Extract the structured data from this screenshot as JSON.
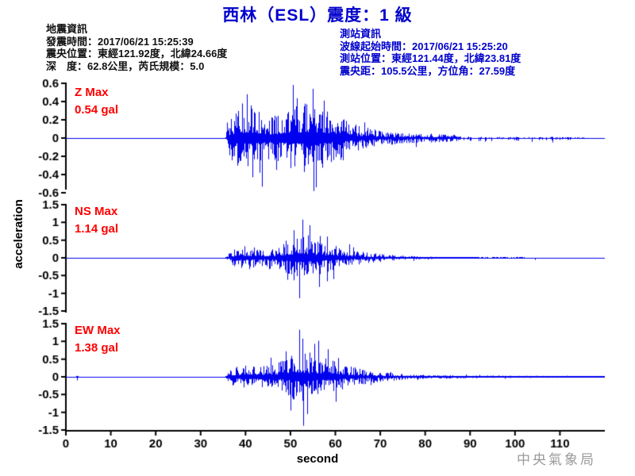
{
  "title": "西林（ESL）震度：1 級",
  "earthquake_info": {
    "heading": "地震資訊",
    "lines": [
      "發震時間：2017/06/21 15:25:39",
      "震央位置：東經121.92度，北緯24.66度",
      "深　度：62.8公里，芮氏規模：5.0"
    ]
  },
  "station_info": {
    "heading": "測站資訊",
    "lines": [
      "波線起始時間：2017/06/21 15:25:20",
      "測站位置：東經121.44度，北緯23.81度",
      "震央距：105.5公里，方位角：27.59度"
    ]
  },
  "watermark": "中央氣象局",
  "colors": {
    "title_blue": "#0000cc",
    "info_blue": "#0000cc",
    "trace_blue": "#0000ee",
    "label_red": "#ff0000",
    "axis_black": "#000000",
    "watermark_gray": "#9a9a9a"
  },
  "chart_data": {
    "type": "line",
    "xlabel": "second",
    "ylabel": "acceleration",
    "x_range": [
      0,
      120
    ],
    "x_ticks": [
      "0",
      "10",
      "20",
      "30",
      "40",
      "50",
      "60",
      "70",
      "80",
      "90",
      "100",
      "110"
    ],
    "x_tick_values": [
      0,
      10,
      20,
      30,
      40,
      50,
      60,
      70,
      80,
      90,
      100,
      110
    ],
    "event_onset_sec": 36,
    "channels": [
      {
        "name": "Z",
        "label": "Z Max",
        "max_label": "0.54 gal",
        "max_gal": 0.54,
        "ylim": [
          -0.6,
          0.6
        ],
        "y_ticks": [
          "0.6",
          "0.4",
          "0.2",
          "0",
          "-0.2",
          "-0.4",
          "-0.6"
        ],
        "y_tick_values": [
          0.6,
          0.4,
          0.2,
          0,
          -0.2,
          -0.4,
          -0.6
        ],
        "envelope": [
          [
            0,
            0.004
          ],
          [
            35.5,
            0.004
          ],
          [
            36.3,
            0.13
          ],
          [
            38,
            0.2
          ],
          [
            40,
            0.24
          ],
          [
            43,
            0.2
          ],
          [
            46,
            0.15
          ],
          [
            48,
            0.2
          ],
          [
            51,
            0.22
          ],
          [
            54,
            0.26
          ],
          [
            56,
            0.24
          ],
          [
            58,
            0.2
          ],
          [
            60,
            0.17
          ],
          [
            63,
            0.12
          ],
          [
            66,
            0.08
          ],
          [
            70,
            0.05
          ],
          [
            75,
            0.04
          ],
          [
            80,
            0.032
          ],
          [
            86,
            0.025
          ],
          [
            92,
            0.02
          ],
          [
            100,
            0.018
          ],
          [
            108,
            0.015
          ],
          [
            114,
            0.012
          ],
          [
            116,
            0.004
          ],
          [
            120,
            0.003
          ]
        ],
        "spikes": [
          [
            40.3,
            0.48
          ],
          [
            41.5,
            -0.43
          ],
          [
            43.2,
            -0.38
          ],
          [
            50.5,
            0.4
          ],
          [
            54.9,
            0.54
          ],
          [
            55.7,
            -0.54
          ],
          [
            57.5,
            0.41
          ]
        ],
        "sparse_from": 88
      },
      {
        "name": "NS",
        "label": "NS Max",
        "max_label": "1.14 gal",
        "max_gal": 1.14,
        "ylim": [
          -1.5,
          1.5
        ],
        "y_ticks": [
          "1.5",
          "1",
          "0.5",
          "0",
          "-0.5",
          "-1",
          "-1.5"
        ],
        "y_tick_values": [
          1.5,
          1,
          0.5,
          0,
          -0.5,
          -1,
          -1.5
        ],
        "envelope": [
          [
            0,
            0.004
          ],
          [
            35.5,
            0.004
          ],
          [
            36.3,
            0.1
          ],
          [
            38,
            0.17
          ],
          [
            40,
            0.21
          ],
          [
            42,
            0.19
          ],
          [
            44,
            0.16
          ],
          [
            46,
            0.18
          ],
          [
            48,
            0.26
          ],
          [
            50,
            0.36
          ],
          [
            52,
            0.44
          ],
          [
            53.5,
            0.42
          ],
          [
            55,
            0.36
          ],
          [
            57,
            0.3
          ],
          [
            59,
            0.24
          ],
          [
            61,
            0.2
          ],
          [
            63,
            0.15
          ],
          [
            66,
            0.11
          ],
          [
            69,
            0.08
          ],
          [
            72,
            0.055
          ],
          [
            76,
            0.035
          ],
          [
            80,
            0.022
          ],
          [
            85,
            0.014
          ],
          [
            90,
            0.01
          ],
          [
            96,
            0.008
          ],
          [
            102,
            0.006
          ],
          [
            106,
            0.003
          ],
          [
            112,
            0.002
          ],
          [
            120,
            0.002
          ]
        ],
        "spikes": [
          [
            49.3,
            -0.62
          ],
          [
            50.8,
            0.78
          ],
          [
            52,
            -1.14
          ],
          [
            52.6,
            1.08
          ],
          [
            54.2,
            0.92
          ],
          [
            56.3,
            -0.82
          ],
          [
            58.1,
            0.6
          ],
          [
            104.5,
            -0.06
          ]
        ],
        "sparse_from": 92
      },
      {
        "name": "EW",
        "label": "EW Max",
        "max_label": "1.38 gal",
        "max_gal": 1.38,
        "ylim": [
          -1.5,
          1.5
        ],
        "y_ticks": [
          "1.5",
          "1",
          "0.5",
          "0",
          "-0.5",
          "-1",
          "-1.5"
        ],
        "y_tick_values": [
          1.5,
          1,
          0.5,
          0,
          -0.5,
          -1,
          -1.5
        ],
        "envelope": [
          [
            0,
            0.003
          ],
          [
            2.2,
            0.003
          ],
          [
            2.5,
            0.05
          ],
          [
            2.8,
            0.003
          ],
          [
            35.5,
            0.003
          ],
          [
            36.3,
            0.12
          ],
          [
            38,
            0.2
          ],
          [
            40,
            0.24
          ],
          [
            42,
            0.22
          ],
          [
            44,
            0.2
          ],
          [
            46,
            0.22
          ],
          [
            48,
            0.28
          ],
          [
            50,
            0.38
          ],
          [
            52,
            0.46
          ],
          [
            54,
            0.4
          ],
          [
            56,
            0.36
          ],
          [
            58,
            0.32
          ],
          [
            60,
            0.27
          ],
          [
            62,
            0.22
          ],
          [
            64,
            0.18
          ],
          [
            66,
            0.14
          ],
          [
            69,
            0.1
          ],
          [
            72,
            0.07
          ],
          [
            76,
            0.05
          ],
          [
            80,
            0.035
          ],
          [
            86,
            0.028
          ],
          [
            92,
            0.024
          ],
          [
            100,
            0.02
          ],
          [
            108,
            0.018
          ],
          [
            114,
            0.016
          ],
          [
            118,
            0.014
          ],
          [
            120,
            0.01
          ]
        ],
        "spikes": [
          [
            2.5,
            -0.1
          ],
          [
            49,
            0.72
          ],
          [
            50,
            -0.95
          ],
          [
            52,
            1.33
          ],
          [
            52.9,
            -1.38
          ],
          [
            53.8,
            -1.05
          ],
          [
            55.3,
            0.93
          ],
          [
            56.2,
            1.02
          ],
          [
            58.4,
            0.78
          ]
        ],
        "sparse_from": null
      }
    ]
  }
}
